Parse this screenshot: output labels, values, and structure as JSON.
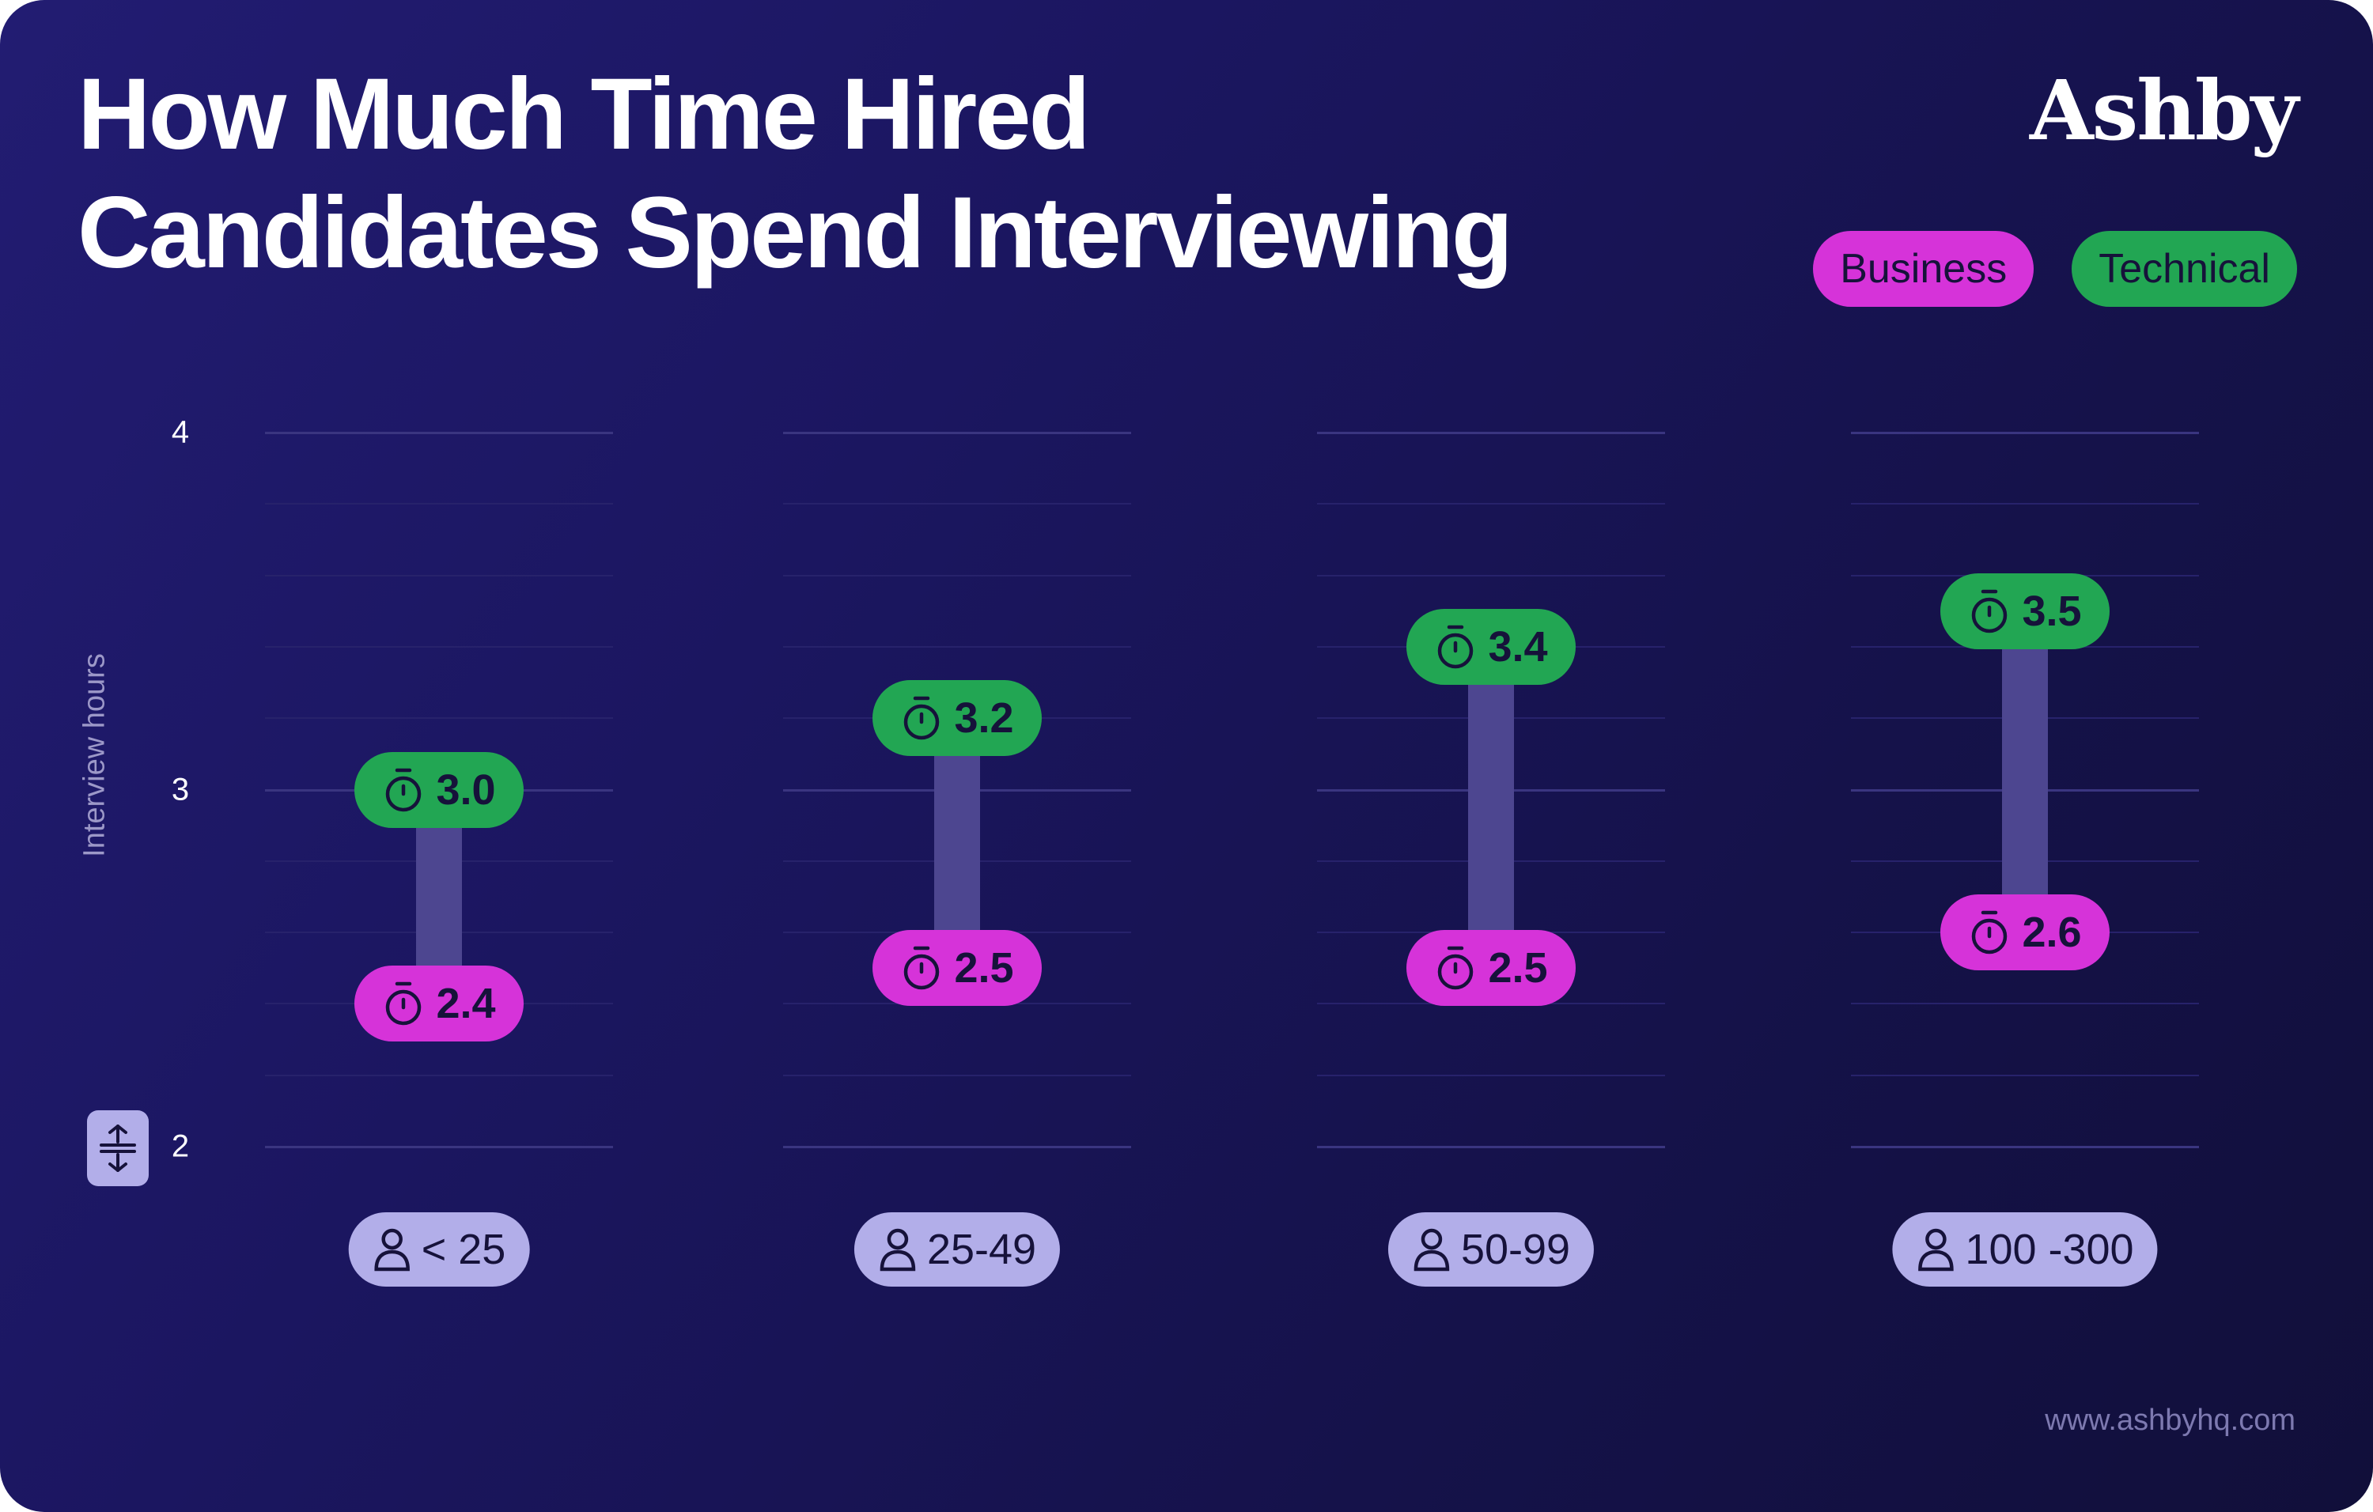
{
  "header": {
    "title_line1": "How Much Time Hired",
    "title_line2": "Candidates Spend Interviewing",
    "logo": "Ashby"
  },
  "legend": {
    "business": "Business",
    "technical": "Technical"
  },
  "colors": {
    "business": "#d633d9",
    "technical": "#22a653",
    "category": "#b2aee9",
    "connector": "#4d4690"
  },
  "icons": {
    "value": "stopwatch-icon",
    "category": "person-icon",
    "axis": "expand-vertical-icon"
  },
  "chart_data": {
    "type": "dumbbell",
    "title": "How Much Time Hired Candidates Spend Interviewing",
    "ylabel": "Interview hours",
    "ylim": [
      2,
      4
    ],
    "yticks": [
      "2",
      "3",
      "4"
    ],
    "categories": [
      "< 25",
      "25-49",
      "50-99",
      "100 -300"
    ],
    "series": [
      {
        "name": "Business",
        "values": [
          2.4,
          2.5,
          2.5,
          2.6
        ],
        "labels": [
          "2.4",
          "2.5",
          "2.5",
          "2.6"
        ]
      },
      {
        "name": "Technical",
        "values": [
          3.0,
          3.2,
          3.4,
          3.5
        ],
        "labels": [
          "3.0",
          "3.2",
          "3.4",
          "3.5"
        ]
      }
    ],
    "legend_position": "top-right",
    "grid": true
  },
  "footer": {
    "url": "www.ashbyhq.com"
  }
}
